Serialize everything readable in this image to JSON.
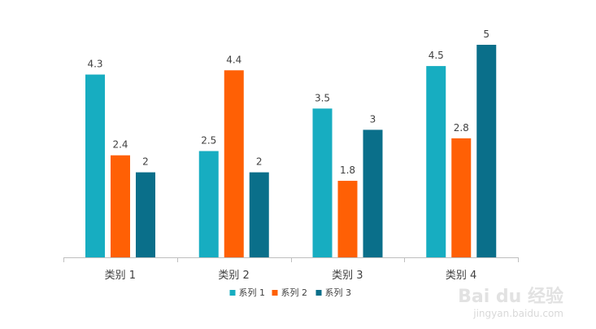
{
  "colors": {
    "series1": "#17ADC1",
    "series2": "#FF6005",
    "series3": "#0A6F8A",
    "axis": "#BFBFBF",
    "text": "#404040"
  },
  "watermark": {
    "main": "Bai du 经验",
    "sub": "jingyan.baidu.com"
  },
  "chart_data": {
    "type": "bar",
    "categories": [
      "类别 1",
      "类别 2",
      "类别 3",
      "类别 4"
    ],
    "series": [
      {
        "name": "系列 1",
        "values": [
          4.3,
          2.5,
          3.5,
          4.5
        ]
      },
      {
        "name": "系列 2",
        "values": [
          2.4,
          4.4,
          1.8,
          2.8
        ]
      },
      {
        "name": "系列 3",
        "values": [
          2,
          2,
          3,
          5
        ]
      }
    ],
    "ylim": [
      0,
      5
    ],
    "grid": false,
    "legend_position": "bottom",
    "data_labels": true
  }
}
